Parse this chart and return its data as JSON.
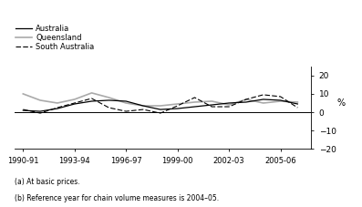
{
  "x_labels": [
    "1990-91",
    "1993-94",
    "1996-97",
    "1999-00",
    "2002-03",
    "2005-06"
  ],
  "x_tick_positions": [
    1990,
    1993,
    1996,
    1999,
    2002,
    2005
  ],
  "x_values": [
    1990,
    1991,
    1992,
    1993,
    1994,
    1995,
    1996,
    1997,
    1998,
    1999,
    2000,
    2001,
    2002,
    2003,
    2004,
    2005,
    2006
  ],
  "australia": [
    1.0,
    0.5,
    2.0,
    4.5,
    6.0,
    6.5,
    6.0,
    3.5,
    1.5,
    2.0,
    3.0,
    4.0,
    5.0,
    5.5,
    7.0,
    6.5,
    4.5
  ],
  "queensland": [
    10.0,
    6.5,
    5.0,
    7.0,
    10.5,
    8.0,
    5.0,
    3.5,
    3.5,
    4.5,
    5.5,
    6.0,
    4.0,
    7.0,
    5.0,
    6.0,
    5.5
  ],
  "south_australia": [
    1.5,
    -0.5,
    2.5,
    5.0,
    7.5,
    2.5,
    0.5,
    1.5,
    -0.5,
    3.5,
    8.0,
    3.0,
    3.0,
    7.0,
    9.5,
    8.5,
    2.5
  ],
  "ylim": [
    -20,
    25
  ],
  "yticks": [
    -20,
    -10,
    0,
    10,
    20
  ],
  "xlim": [
    1989.5,
    2006.8
  ],
  "australia_color": "#000000",
  "queensland_color": "#aaaaaa",
  "south_australia_color": "#000000",
  "zero_line_color": "#000000",
  "background_color": "#ffffff",
  "footnote1": "(a) At basic prices.",
  "footnote2": "(b) Reference year for chain volume measures is 2004–05.",
  "ylabel": "%"
}
